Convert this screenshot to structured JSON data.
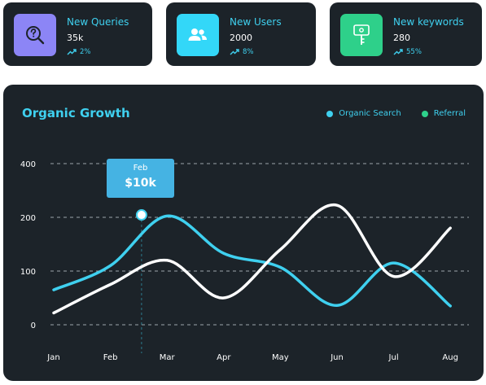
{
  "colors": {
    "card_bg": "#1c2329",
    "accent_cyan": "#3fd0ef",
    "organic": "#3fd0ef",
    "referral_legend": "#2ed18b",
    "queries_icon_bg": "#8c85f6",
    "users_icon_bg": "#33d7f8",
    "keywords_icon_bg": "#2ed08a"
  },
  "cards": [
    {
      "title": "New Queries",
      "value": "35k",
      "change": "2%",
      "icon": "search-question-icon",
      "trend_icon": "trend-up-icon"
    },
    {
      "title": "New Users",
      "value": "2000",
      "change": "8%",
      "icon": "users-icon",
      "trend_icon": "trend-up-icon"
    },
    {
      "title": "New keywords",
      "value": "280",
      "change": "55%",
      "icon": "key-icon",
      "trend_icon": "trend-up-icon"
    }
  ],
  "chart_data": {
    "type": "line",
    "title": "Organic Growth",
    "categories": [
      "Jan",
      "Feb",
      "Mar",
      "Apr",
      "May",
      "Jun",
      "Jul",
      "Aug"
    ],
    "y_ticks": [
      "0",
      "100",
      "200",
      "400"
    ],
    "ylim": [
      0,
      400
    ],
    "grid": true,
    "legend_position": "top-right",
    "legend": [
      "Organic Search",
      "Referral"
    ],
    "series": [
      {
        "name": "Organic Search",
        "color": "#3fd0ef",
        "values": [
          65,
          110,
          205,
          133,
          107,
          36,
          115,
          35
        ]
      },
      {
        "name": "Referral",
        "color": "#ffffff",
        "values": [
          22,
          75,
          120,
          50,
          140,
          245,
          90,
          180
        ]
      }
    ],
    "tooltip": {
      "label": "Feb",
      "value": "$10k",
      "month_position": 1.55,
      "data_value": 209
    }
  }
}
